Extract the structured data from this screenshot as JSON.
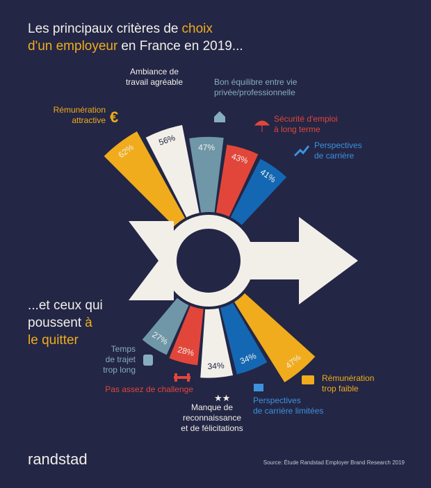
{
  "title": {
    "line1": "Les principaux critères de",
    "line1_highlight": "choix",
    "line2_highlight": "d'un employeur",
    "line2": "en France en 2019..."
  },
  "top": {
    "items": [
      {
        "label": [
          "Rémunération",
          "attractive"
        ],
        "value": 62,
        "value_label": "62%",
        "color": "#f0ac1c",
        "text_color": "#f0ac1c"
      },
      {
        "label": [
          "Ambiance de",
          "travail agréable"
        ],
        "value": 56,
        "value_label": "56%",
        "color": "#f2efe9",
        "text_color": "#f2efe9"
      },
      {
        "label": [
          "Bon équilibre entre vie",
          "privée/professionnelle"
        ],
        "value": 47,
        "value_label": "47%",
        "color": "#6f97a8",
        "text_color": "#86aebf"
      },
      {
        "label": [
          "Sécurité d'emploi",
          "à long terme"
        ],
        "value": 43,
        "value_label": "43%",
        "color": "#e2463a",
        "text_color": "#e2463a"
      },
      {
        "label": [
          "Perspectives",
          "de carrière"
        ],
        "value": 41,
        "value_label": "41%",
        "color": "#1467b3",
        "text_color": "#3d92de"
      }
    ]
  },
  "heading": {
    "line1": "...et ceux qui",
    "line2": "poussent",
    "line2_highlight": "à",
    "line3_highlight": "le quitter"
  },
  "bottom": {
    "items": [
      {
        "label": [
          "Temps",
          "de trajet",
          "trop long"
        ],
        "value": 27,
        "value_label": "27%",
        "color": "#6f97a8",
        "text_color": "#86aebf"
      },
      {
        "label": [
          "Pas assez de challenge"
        ],
        "value": 28,
        "value_label": "28%",
        "color": "#e2463a",
        "text_color": "#e2463a"
      },
      {
        "label": [
          "Manque de",
          "reconnaissance",
          "et de félicitations"
        ],
        "value": 34,
        "value_label": "34%",
        "color": "#f2efe9",
        "text_color": "#f2efe9"
      },
      {
        "label": [
          "Perspectives",
          "de carrière limitées"
        ],
        "value": 34,
        "value_label": "34%",
        "color": "#1467b3",
        "text_color": "#3d92de"
      },
      {
        "label": [
          "Rémunération",
          "trop faible"
        ],
        "value": 47,
        "value_label": "47%",
        "color": "#f0ac1c",
        "text_color": "#f0ac1c"
      }
    ]
  },
  "footer": {
    "logo": "randstad",
    "source": "Source: Étude Randstad Employer Brand Research 2019"
  }
}
